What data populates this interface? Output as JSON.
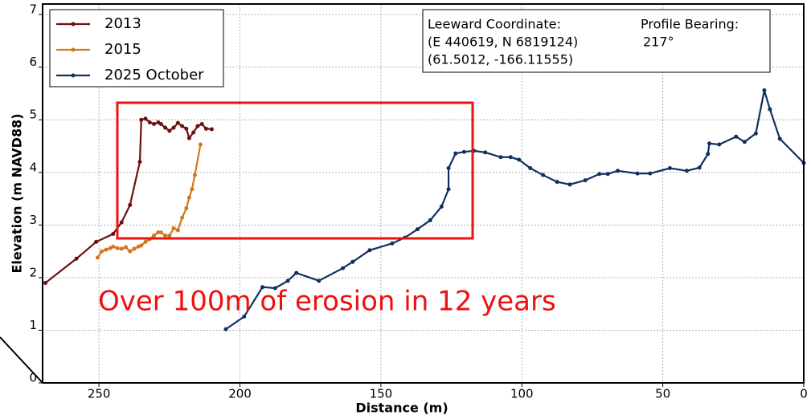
{
  "chart_data": {
    "type": "line",
    "xlabel": "Distance (m)",
    "ylabel": "Elevation (m NAVD88)",
    "xlim": [
      270,
      0
    ],
    "ylim": [
      0,
      7.2
    ],
    "xticks": [
      250,
      200,
      150,
      100,
      50,
      0
    ],
    "yticks": [
      0,
      1,
      2,
      3,
      4,
      5,
      6,
      7
    ],
    "grid": true,
    "legend": "upper left",
    "info_box": {
      "left_lines": [
        "Leeward Coordinate:",
        "(E 440619, N 6819124)",
        "(61.5012, -166.11555)"
      ],
      "right_lines": [
        "Profile Bearing:",
        "217°"
      ]
    },
    "annotation": "Over 100m of erosion in 12 years",
    "series": [
      {
        "name": "2013",
        "color": "#6b0f0f",
        "x": [
          269,
          258,
          251,
          245,
          242,
          239,
          235.5,
          235,
          233.5,
          232,
          230.5,
          229,
          228,
          226.5,
          225,
          223.5,
          222,
          220.5,
          219,
          218,
          216.5,
          215,
          213.5,
          212,
          210
        ],
        "values": [
          1.9,
          2.36,
          2.68,
          2.83,
          3.05,
          3.38,
          4.2,
          5.0,
          5.02,
          4.95,
          4.92,
          4.95,
          4.92,
          4.85,
          4.79,
          4.85,
          4.94,
          4.88,
          4.83,
          4.65,
          4.76,
          4.88,
          4.92,
          4.83,
          4.82
        ]
      },
      {
        "name": "2015",
        "color": "#d4761c",
        "x": [
          250.5,
          249,
          247.5,
          246,
          245,
          243.5,
          242,
          240.5,
          239,
          237.5,
          236,
          235,
          233.5,
          232,
          230.5,
          229,
          228,
          226.5,
          225,
          223.5,
          222,
          220.5,
          219,
          218,
          217,
          216,
          214
        ],
        "values": [
          2.38,
          2.5,
          2.53,
          2.56,
          2.59,
          2.56,
          2.55,
          2.58,
          2.5,
          2.55,
          2.59,
          2.61,
          2.68,
          2.73,
          2.8,
          2.86,
          2.86,
          2.8,
          2.8,
          2.94,
          2.9,
          3.14,
          3.32,
          3.52,
          3.68,
          3.95,
          4.53
        ]
      },
      {
        "name": "2025 October",
        "color": "#10305f",
        "x": [
          205,
          198.5,
          192,
          187.5,
          183,
          180,
          172,
          163.5,
          160,
          154,
          146,
          141.5,
          137,
          132.5,
          128.5,
          126,
          126,
          123.5,
          120.5,
          117,
          113,
          107.5,
          104,
          101,
          97,
          92.5,
          87.5,
          83,
          77.5,
          72.5,
          69.5,
          66,
          59,
          54.5,
          47.5,
          41.5,
          37,
          34,
          33.5,
          30,
          24,
          21,
          17,
          14,
          12,
          8.5,
          0
        ],
        "values": [
          1.02,
          1.26,
          1.82,
          1.8,
          1.94,
          2.09,
          1.94,
          2.18,
          2.3,
          2.52,
          2.65,
          2.76,
          2.92,
          3.09,
          3.35,
          3.68,
          4.08,
          4.36,
          4.39,
          4.41,
          4.38,
          4.29,
          4.29,
          4.24,
          4.08,
          3.95,
          3.82,
          3.77,
          3.85,
          3.97,
          3.97,
          4.03,
          3.98,
          3.98,
          4.08,
          4.03,
          4.09,
          4.35,
          4.55,
          4.53,
          4.68,
          4.58,
          4.74,
          5.56,
          5.2,
          4.64,
          4.18
        ]
      }
    ]
  }
}
